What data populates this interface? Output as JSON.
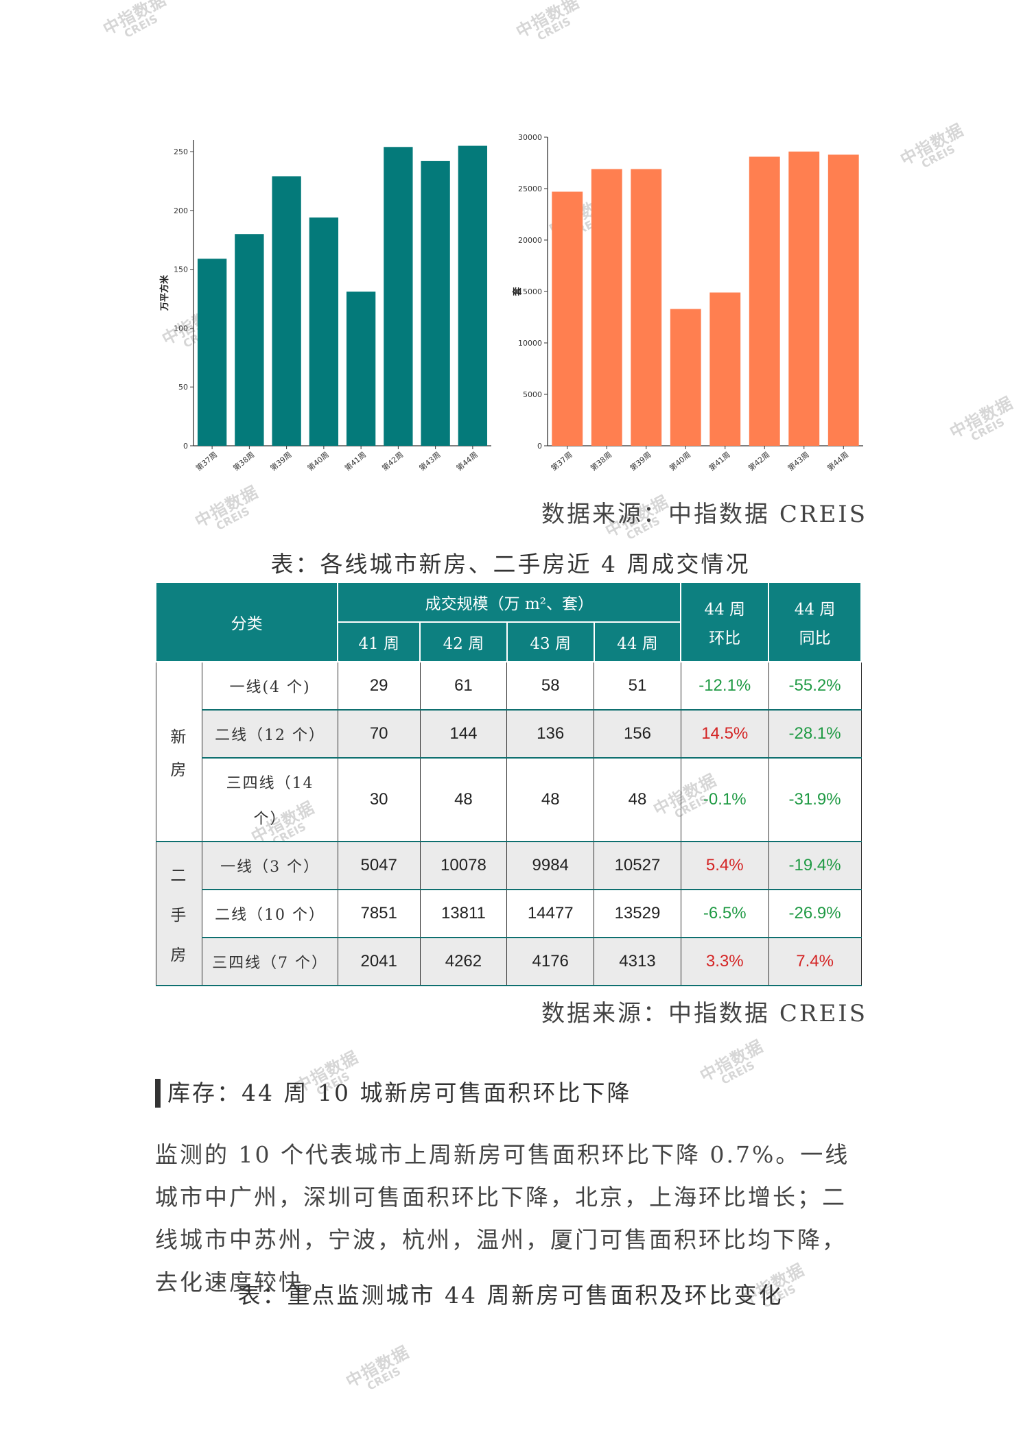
{
  "watermark": {
    "cn": "中指数据",
    "en": "CREIS"
  },
  "chart_data": [
    {
      "type": "bar",
      "categories": [
        "第37周",
        "第38周",
        "第39周",
        "第40周",
        "第41周",
        "第42周",
        "第43周",
        "第44周"
      ],
      "values": [
        159,
        180,
        229,
        194,
        131,
        254,
        242,
        255
      ],
      "ylabel": "万平方米",
      "ylim": [
        0,
        260
      ],
      "yticks": [
        0,
        50,
        100,
        150,
        200,
        250
      ],
      "color": "#047a7a",
      "grid": false
    },
    {
      "type": "bar",
      "categories": [
        "第37周",
        "第38周",
        "第39周",
        "第40周",
        "第41周",
        "第42周",
        "第43周",
        "第44周"
      ],
      "values": [
        24700,
        26900,
        26900,
        13300,
        14900,
        28100,
        28600,
        28300
      ],
      "ylabel": "套",
      "ylim": [
        0,
        30000
      ],
      "yticks": [
        0,
        5000,
        10000,
        15000,
        20000,
        25000,
        30000
      ],
      "color": "#ff7f50",
      "grid": false
    }
  ],
  "source1": "数据来源：中指数据 CREIS",
  "table1": {
    "caption": "表：各线城市新房、二手房近 4 周成交情况",
    "header": {
      "category": "分类",
      "scale": "成交规模（万 m²、套）",
      "weeks": [
        "41 周",
        "42 周",
        "43 周",
        "44 周"
      ],
      "wow_top": "44 周",
      "wow_bottom": "环比",
      "yoy_top": "44 周",
      "yoy_bottom": "同比"
    },
    "groups": [
      {
        "name_chars": [
          "新",
          "房"
        ],
        "rows": [
          {
            "label": "一线(4 个)",
            "values": [
              "29",
              "61",
              "58",
              "51"
            ],
            "wow": "-12.1%",
            "yoy": "-55.2%"
          },
          {
            "label": "二线（12 个）",
            "values": [
              "70",
              "144",
              "136",
              "156"
            ],
            "wow": "14.5%",
            "yoy": "-28.1%"
          },
          {
            "label_1": "三四线（14",
            "label_2": "个）",
            "values": [
              "30",
              "48",
              "48",
              "48"
            ],
            "wow": "-0.1%",
            "yoy": "-31.9%"
          }
        ]
      },
      {
        "name_chars": [
          "二",
          "手",
          "房"
        ],
        "rows": [
          {
            "label": "一线（3 个）",
            "values": [
              "5047",
              "10078",
              "9984",
              "10527"
            ],
            "wow": "5.4%",
            "yoy": "-19.4%"
          },
          {
            "label": "二线（10 个）",
            "values": [
              "7851",
              "13811",
              "14477",
              "13529"
            ],
            "wow": "-6.5%",
            "yoy": "-26.9%"
          },
          {
            "label": "三四线（7 个）",
            "values": [
              "2041",
              "4262",
              "4176",
              "4313"
            ],
            "wow": "3.3%",
            "yoy": "7.4%"
          }
        ]
      }
    ]
  },
  "source2": "数据来源：中指数据 CREIS",
  "section_title": "库存：44 周 10 城新房可售面积环比下降",
  "paragraph": "监测的 10 个代表城市上周新房可售面积环比下降 0.7%。一线城市中广州，深圳可售面积环比下降，北京，上海环比增长；二线城市中苏州，宁波，杭州，温州，厦门可售面积环比均下降，去化速度较快。",
  "table2_caption": "表：重点监测城市 44 周新房可售面积及环比变化"
}
